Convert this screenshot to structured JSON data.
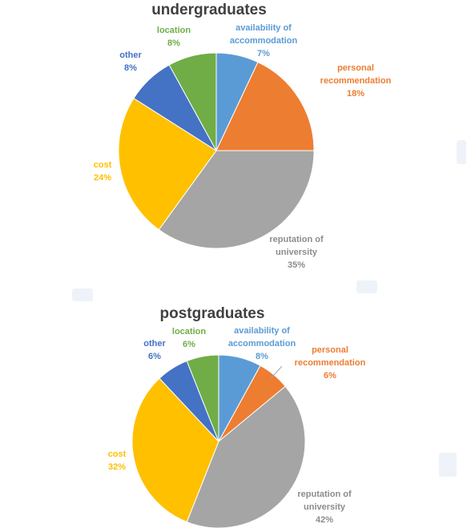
{
  "colors": {
    "availability of accommodation": "#5b9bd5",
    "personal recommendation": "#ed7d31",
    "reputation of university": "#a5a5a5",
    "cost": "#ffc000",
    "other": "#4472c4",
    "location": "#70ad47"
  },
  "label_colors": {
    "availability of accommodation": "#5b9bd5",
    "personal recommendation": "#ed7d31",
    "reputation of university": "#8c8c8c",
    "cost": "#ffc000",
    "other": "#4472c4",
    "location": "#70ad47"
  },
  "chart_data": [
    {
      "type": "pie",
      "title": "undergraduates",
      "slices": [
        {
          "label": "availability of accommodation",
          "label_lines": [
            "availability of",
            "accommodation"
          ],
          "value": 7,
          "value_text": "7%"
        },
        {
          "label": "personal recommendation",
          "label_lines": [
            "personal",
            "recommendation"
          ],
          "value": 18,
          "value_text": "18%"
        },
        {
          "label": "reputation of university",
          "label_lines": [
            "reputation of",
            "university"
          ],
          "value": 35,
          "value_text": "35%"
        },
        {
          "label": "cost",
          "label_lines": [
            "cost"
          ],
          "value": 24,
          "value_text": "24%"
        },
        {
          "label": "other",
          "label_lines": [
            "other"
          ],
          "value": 8,
          "value_text": "8%"
        },
        {
          "label": "location",
          "label_lines": [
            "location"
          ],
          "value": 8,
          "value_text": "8%"
        }
      ]
    },
    {
      "type": "pie",
      "title": "postgraduates",
      "slices": [
        {
          "label": "availability of accommodation",
          "label_lines": [
            "availability of",
            "accommodation"
          ],
          "value": 8,
          "value_text": "8%"
        },
        {
          "label": "personal recommendation",
          "label_lines": [
            "personal",
            "recommendation"
          ],
          "value": 6,
          "value_text": "6%"
        },
        {
          "label": "reputation of university",
          "label_lines": [
            "reputation of",
            "university"
          ],
          "value": 42,
          "value_text": "42%"
        },
        {
          "label": "cost",
          "label_lines": [
            "cost"
          ],
          "value": 32,
          "value_text": "32%"
        },
        {
          "label": "other",
          "label_lines": [
            "other"
          ],
          "value": 6,
          "value_text": "6%"
        },
        {
          "label": "location",
          "label_lines": [
            "location"
          ],
          "value": 6,
          "value_text": "6%"
        }
      ]
    }
  ]
}
